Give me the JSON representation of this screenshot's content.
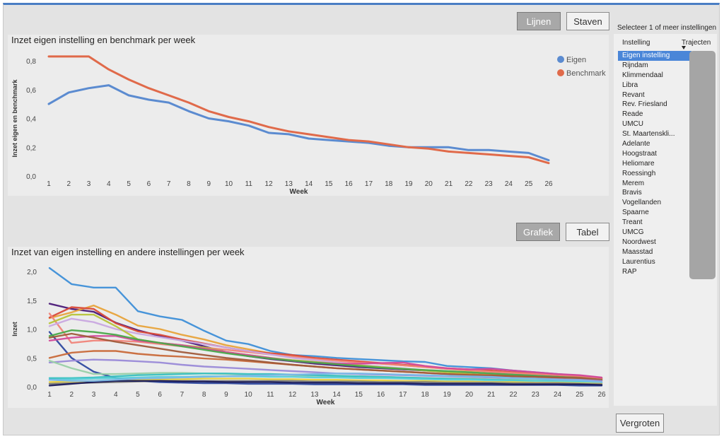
{
  "buttons": {
    "lijnen": "Lijnen",
    "staven": "Staven",
    "grafiek": "Grafiek",
    "tabel": "Tabel",
    "vergroten": "Vergroten"
  },
  "slicer": {
    "title": "Selecteer 1 of meer instellingen",
    "col_instelling": "Instelling",
    "col_trajecten": "Trajecten",
    "sort_icon": "sort-down-triangle",
    "items": [
      "Eigen instelling",
      "Rijndam",
      "Klimmendaal",
      "Libra",
      "Revant",
      "Rev. Friesland",
      "Reade",
      "UMCU",
      "St. Maartenskli...",
      "Adelante",
      "Hoogstraat",
      "Heliomare",
      "Roessingh",
      "Merem",
      "Bravis",
      "Vogellanden",
      "Spaarne",
      "Treant",
      "UMCG",
      "Noordwest",
      "Maasstad",
      "Laurentius",
      "RAP"
    ],
    "selected_index": 0
  },
  "chart_data": [
    {
      "type": "line",
      "title": "Inzet eigen instelling en benchmark per week",
      "xlabel": "Week",
      "ylabel": "Inzet eigen en benchmark",
      "ylim": [
        0,
        0.8
      ],
      "yticks": [
        "0,0",
        "0,2",
        "0,4",
        "0,6",
        "0,8"
      ],
      "grid": false,
      "legend_position": "top-right",
      "x": [
        1,
        2,
        3,
        4,
        5,
        6,
        7,
        8,
        9,
        10,
        11,
        12,
        13,
        14,
        15,
        16,
        17,
        18,
        19,
        20,
        21,
        22,
        23,
        24,
        25,
        26
      ],
      "series": [
        {
          "name": "Eigen",
          "color": "#5b8bd0",
          "values": [
            0.5,
            0.58,
            0.61,
            0.63,
            0.56,
            0.53,
            0.51,
            0.45,
            0.4,
            0.38,
            0.35,
            0.3,
            0.29,
            0.26,
            0.25,
            0.24,
            0.23,
            0.21,
            0.2,
            0.2,
            0.2,
            0.18,
            0.18,
            0.17,
            0.16,
            0.11
          ]
        },
        {
          "name": "Benchmark",
          "color": "#e06a4a",
          "values": [
            0.83,
            0.83,
            0.83,
            0.74,
            0.67,
            0.61,
            0.56,
            0.51,
            0.45,
            0.41,
            0.38,
            0.34,
            0.31,
            0.29,
            0.27,
            0.25,
            0.24,
            0.22,
            0.2,
            0.19,
            0.17,
            0.16,
            0.15,
            0.14,
            0.13,
            0.09
          ]
        }
      ]
    },
    {
      "type": "line",
      "title": "Inzet van eigen instelling en andere instellingen per week",
      "xlabel": "Week",
      "ylabel": "Inzet",
      "ylim": [
        0,
        2.0
      ],
      "yticks": [
        "0,0",
        "0,5",
        "1,0",
        "1,5",
        "2,0"
      ],
      "grid": false,
      "x": [
        1,
        2,
        3,
        4,
        5,
        6,
        7,
        8,
        9,
        10,
        11,
        12,
        13,
        14,
        15,
        16,
        17,
        18,
        19,
        20,
        21,
        22,
        23,
        24,
        25,
        26
      ],
      "series": [
        {
          "color": "#3e8fd8",
          "values": [
            2.06,
            1.78,
            1.72,
            1.72,
            1.31,
            1.22,
            1.16,
            0.97,
            0.8,
            0.74,
            0.62,
            0.55,
            0.53,
            0.5,
            0.48,
            0.46,
            0.44,
            0.43,
            0.36,
            0.34,
            0.32,
            0.28,
            0.25,
            0.22,
            0.19,
            0.15
          ]
        },
        {
          "color": "#4b1a78",
          "values": [
            1.44,
            1.35,
            1.3,
            1.11,
            0.98,
            0.88,
            0.8,
            0.7,
            0.6,
            0.53,
            0.48,
            0.44,
            0.4,
            0.37,
            0.34,
            0.32,
            0.3,
            0.28,
            0.26,
            0.24,
            0.23,
            0.21,
            0.2,
            0.19,
            0.17,
            0.14
          ]
        },
        {
          "color": "#e8a33a",
          "values": [
            1.19,
            1.29,
            1.41,
            1.25,
            1.06,
            1.0,
            0.9,
            0.82,
            0.72,
            0.65,
            0.58,
            0.54,
            0.5,
            0.46,
            0.43,
            0.4,
            0.37,
            0.34,
            0.31,
            0.28,
            0.26,
            0.24,
            0.22,
            0.21,
            0.19,
            0.14
          ]
        },
        {
          "color": "#d94a3a",
          "values": [
            1.2,
            1.38,
            1.35,
            1.1,
            0.96,
            0.9,
            0.82,
            0.75,
            0.68,
            0.62,
            0.58,
            0.55,
            0.5,
            0.47,
            0.44,
            0.41,
            0.38,
            0.35,
            0.32,
            0.3,
            0.28,
            0.25,
            0.23,
            0.21,
            0.19,
            0.15
          ]
        },
        {
          "color": "#f0847a",
          "values": [
            1.27,
            0.76,
            0.8,
            0.8,
            0.78,
            0.74,
            0.7,
            0.68,
            0.64,
            0.6,
            0.56,
            0.52,
            0.48,
            0.45,
            0.42,
            0.4,
            0.37,
            0.34,
            0.31,
            0.29,
            0.26,
            0.24,
            0.22,
            0.2,
            0.18,
            0.13
          ]
        },
        {
          "color": "#c9a8e0",
          "values": [
            1.05,
            1.18,
            1.12,
            1.0,
            0.92,
            0.86,
            0.8,
            0.74,
            0.68,
            0.62,
            0.56,
            0.5,
            0.46,
            0.42,
            0.38,
            0.35,
            0.32,
            0.29,
            0.27,
            0.25,
            0.23,
            0.21,
            0.19,
            0.17,
            0.16,
            0.12
          ]
        },
        {
          "color": "#b8c43a",
          "values": [
            1.1,
            1.25,
            1.25,
            1.05,
            0.82,
            0.76,
            0.72,
            0.68,
            0.6,
            0.55,
            0.5,
            0.46,
            0.43,
            0.4,
            0.37,
            0.34,
            0.31,
            0.28,
            0.25,
            0.22,
            0.2,
            0.18,
            0.16,
            0.15,
            0.14,
            0.11
          ]
        },
        {
          "color": "#2f4aa0",
          "values": [
            0.95,
            0.5,
            0.26,
            0.15,
            0.1,
            0.08,
            0.07,
            0.06,
            0.06,
            0.05,
            0.05,
            0.05,
            0.04,
            0.04,
            0.04,
            0.04,
            0.04,
            0.03,
            0.03,
            0.03,
            0.03,
            0.03,
            0.03,
            0.03,
            0.02,
            0.02
          ]
        },
        {
          "color": "#c96a3a",
          "values": [
            0.5,
            0.59,
            0.62,
            0.62,
            0.57,
            0.54,
            0.52,
            0.49,
            0.47,
            0.44,
            0.41,
            0.38,
            0.35,
            0.32,
            0.3,
            0.28,
            0.26,
            0.24,
            0.22,
            0.21,
            0.2,
            0.19,
            0.18,
            0.17,
            0.16,
            0.12
          ]
        },
        {
          "color": "#d24a9a",
          "values": [
            0.8,
            0.85,
            0.88,
            0.88,
            0.8,
            0.76,
            0.72,
            0.66,
            0.6,
            0.55,
            0.5,
            0.45,
            0.42,
            0.4,
            0.4,
            0.41,
            0.42,
            0.36,
            0.32,
            0.3,
            0.31,
            0.28,
            0.25,
            0.22,
            0.2,
            0.16
          ]
        },
        {
          "color": "#4aa84a",
          "values": [
            0.88,
            0.98,
            0.95,
            0.9,
            0.82,
            0.76,
            0.7,
            0.64,
            0.58,
            0.53,
            0.49,
            0.45,
            0.42,
            0.39,
            0.36,
            0.33,
            0.31,
            0.29,
            0.27,
            0.25,
            0.23,
            0.21,
            0.19,
            0.17,
            0.15,
            0.12
          ]
        },
        {
          "color": "#a05a3a",
          "values": [
            0.85,
            0.92,
            0.85,
            0.78,
            0.72,
            0.66,
            0.6,
            0.55,
            0.5,
            0.46,
            0.42,
            0.38,
            0.35,
            0.32,
            0.3,
            0.28,
            0.26,
            0.24,
            0.22,
            0.2,
            0.19,
            0.18,
            0.17,
            0.16,
            0.15,
            0.12
          ]
        },
        {
          "color": "#9a8ad8",
          "values": [
            0.42,
            0.45,
            0.47,
            0.46,
            0.44,
            0.42,
            0.38,
            0.35,
            0.33,
            0.31,
            0.29,
            0.27,
            0.25,
            0.23,
            0.22,
            0.21,
            0.2,
            0.19,
            0.18,
            0.17,
            0.16,
            0.15,
            0.14,
            0.13,
            0.12,
            0.1
          ]
        },
        {
          "color": "#9ad0a8",
          "values": [
            0.45,
            0.32,
            0.22,
            0.22,
            0.23,
            0.24,
            0.24,
            0.23,
            0.22,
            0.21,
            0.21,
            0.2,
            0.19,
            0.18,
            0.18,
            0.17,
            0.16,
            0.15,
            0.14,
            0.14,
            0.13,
            0.12,
            0.12,
            0.11,
            0.1,
            0.08
          ]
        },
        {
          "color": "#38c0c0",
          "values": [
            0.15,
            0.15,
            0.16,
            0.18,
            0.2,
            0.21,
            0.22,
            0.23,
            0.23,
            0.22,
            0.22,
            0.21,
            0.2,
            0.19,
            0.18,
            0.17,
            0.16,
            0.15,
            0.14,
            0.13,
            0.12,
            0.11,
            0.1,
            0.1,
            0.09,
            0.07
          ]
        },
        {
          "color": "#5ad0d8",
          "values": [
            0.12,
            0.13,
            0.14,
            0.15,
            0.16,
            0.17,
            0.17,
            0.18,
            0.18,
            0.18,
            0.17,
            0.17,
            0.16,
            0.16,
            0.15,
            0.15,
            0.14,
            0.13,
            0.12,
            0.12,
            0.11,
            0.1,
            0.1,
            0.09,
            0.08,
            0.06
          ]
        },
        {
          "color": "#e8d040",
          "values": [
            0.08,
            0.09,
            0.1,
            0.11,
            0.12,
            0.13,
            0.13,
            0.14,
            0.14,
            0.14,
            0.13,
            0.13,
            0.12,
            0.12,
            0.11,
            0.11,
            0.1,
            0.1,
            0.09,
            0.09,
            0.08,
            0.08,
            0.07,
            0.07,
            0.06,
            0.05
          ]
        },
        {
          "color": "#7a7a7a",
          "values": [
            0.05,
            0.06,
            0.07,
            0.08,
            0.09,
            0.1,
            0.1,
            0.1,
            0.1,
            0.1,
            0.1,
            0.1,
            0.09,
            0.09,
            0.09,
            0.08,
            0.08,
            0.08,
            0.07,
            0.07,
            0.07,
            0.06,
            0.06,
            0.06,
            0.05,
            0.04
          ]
        },
        {
          "color": "#1a1a5a",
          "values": [
            0.02,
            0.05,
            0.08,
            0.1,
            0.1,
            0.1,
            0.09,
            0.09,
            0.08,
            0.08,
            0.08,
            0.07,
            0.07,
            0.07,
            0.06,
            0.06,
            0.06,
            0.05,
            0.05,
            0.05,
            0.05,
            0.04,
            0.04,
            0.04,
            0.04,
            0.03
          ]
        },
        {
          "color": "#7ab8e8",
          "values": [
            0.12,
            0.1,
            0.1,
            0.12,
            0.14,
            0.15,
            0.16,
            0.17,
            0.18,
            0.19,
            0.2,
            0.21,
            0.22,
            0.23,
            0.23,
            0.22,
            0.21,
            0.2,
            0.19,
            0.18,
            0.17,
            0.15,
            0.14,
            0.12,
            0.11,
            0.08
          ]
        }
      ]
    }
  ]
}
